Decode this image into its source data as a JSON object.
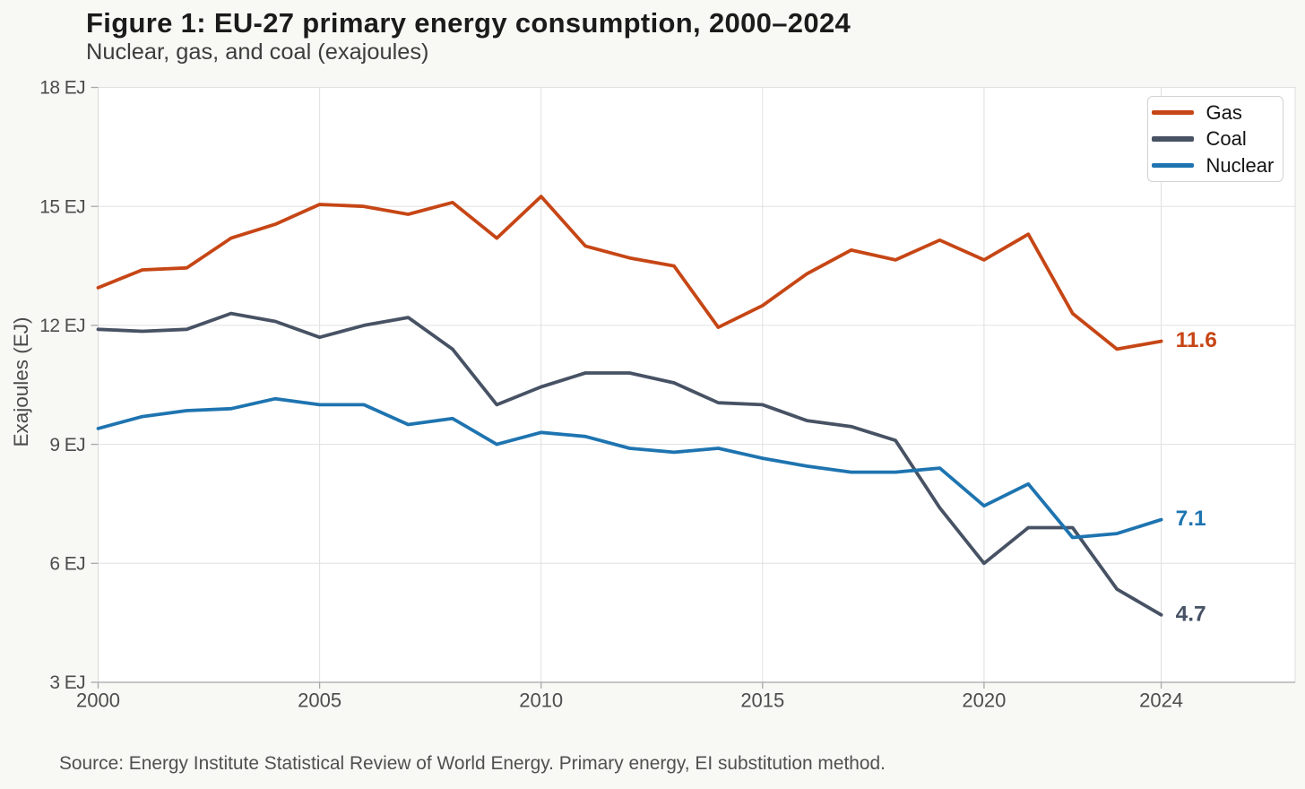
{
  "header": {
    "title": "Figure 1: EU-27 primary energy consumption, 2000–2024",
    "subtitle": "Nuclear, gas, and coal (exajoules)"
  },
  "source_note": "Source: Energy Institute Statistical Review of World Energy. Primary energy, EI substitution method.",
  "legend": {
    "position": "top-right",
    "items": [
      {
        "label": "Gas",
        "color": "#c64615"
      },
      {
        "label": "Coal",
        "color": "#475264"
      },
      {
        "label": "Nuclear",
        "color": "#1e74b0"
      }
    ]
  },
  "colors": {
    "background": "#f8f8f5",
    "plot_background": "#ffffff",
    "gridline": "#e0e0e0",
    "plot_border": "#dcdcdc",
    "axis_line": "#a6a6a6",
    "tick_mark": "#a8a8a8",
    "gas": "#c64615",
    "coal": "#475264",
    "nuclear": "#1e74b0"
  },
  "chart_data": {
    "type": "line",
    "title": "Figure 1: EU-27 primary energy consumption, 2000–2024",
    "subtitle": "Nuclear, gas, and coal (exajoules)",
    "xlabel": "",
    "ylabel": "Exajoules (EJ)",
    "ylim": [
      3,
      18
    ],
    "xlim": [
      2000,
      2027
    ],
    "y_ticks": [
      3,
      6,
      9,
      12,
      15,
      18
    ],
    "y_tick_labels": [
      "3 EJ",
      "6 EJ",
      "9 EJ",
      "12 EJ",
      "15 EJ",
      "18 EJ"
    ],
    "x_ticks": [
      2000,
      2005,
      2010,
      2015,
      2020,
      2024
    ],
    "x_tick_labels": [
      "2000",
      "2005",
      "2010",
      "2015",
      "2020",
      "2024"
    ],
    "grid": true,
    "legend_position": "top-right",
    "x": [
      2000,
      2001,
      2002,
      2003,
      2004,
      2005,
      2006,
      2007,
      2008,
      2009,
      2010,
      2011,
      2012,
      2013,
      2014,
      2015,
      2016,
      2017,
      2018,
      2019,
      2020,
      2021,
      2022,
      2023,
      2024
    ],
    "series": [
      {
        "name": "Gas",
        "color": "#c64615",
        "values": [
          12.95,
          13.4,
          13.45,
          14.2,
          14.55,
          15.05,
          15.0,
          14.8,
          15.1,
          14.2,
          15.25,
          14.0,
          13.7,
          13.5,
          11.95,
          12.5,
          13.3,
          13.9,
          13.65,
          14.15,
          13.65,
          14.3,
          12.3,
          11.4,
          11.6
        ],
        "end_label": "11.6"
      },
      {
        "name": "Coal",
        "color": "#475264",
        "values": [
          11.9,
          11.85,
          11.9,
          12.3,
          12.1,
          11.7,
          12.0,
          12.2,
          11.4,
          10.0,
          10.45,
          10.8,
          10.8,
          10.55,
          10.05,
          10.0,
          9.6,
          9.45,
          9.1,
          7.4,
          6.0,
          6.9,
          6.9,
          5.35,
          4.7
        ],
        "end_label": "4.7"
      },
      {
        "name": "Nuclear",
        "color": "#1e74b0",
        "values": [
          9.4,
          9.7,
          9.85,
          9.9,
          10.15,
          10.0,
          10.0,
          9.5,
          9.65,
          9.0,
          9.3,
          9.2,
          8.9,
          8.8,
          8.9,
          8.65,
          8.45,
          8.3,
          8.3,
          8.4,
          7.45,
          8.0,
          6.65,
          6.75,
          7.1
        ],
        "end_label": "7.1"
      }
    ],
    "end_labels": [
      {
        "text": "11.6",
        "series": "Gas",
        "color": "#c64615"
      },
      {
        "text": "7.1",
        "series": "Nuclear",
        "color": "#1e74b0"
      },
      {
        "text": "4.7",
        "series": "Coal",
        "color": "#475264"
      }
    ]
  }
}
